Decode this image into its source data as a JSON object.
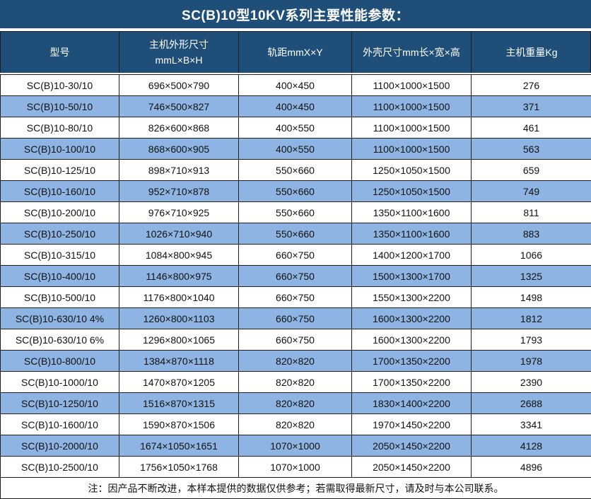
{
  "title": "SC(B)10型10KV系列主要性能参数：",
  "colors": {
    "header_bg": "#1f4e79",
    "header_text": "#ffffff",
    "row_bg": "#ffffff",
    "row_alt_bg": "#8db4e2",
    "border": "#1f1f1f",
    "text": "#111111"
  },
  "table": {
    "headers": [
      {
        "lines": [
          "型号"
        ]
      },
      {
        "lines": [
          "主机外形尺寸",
          "mmL×B×H"
        ]
      },
      {
        "lines": [
          "轨距mmX×Y"
        ]
      },
      {
        "lines": [
          "外壳尺寸mm长×宽×高"
        ]
      },
      {
        "lines": [
          "主机重量Kg"
        ]
      }
    ],
    "rows": [
      [
        "SC(B)10-30/10",
        "696×500×790",
        "400×450",
        "1100×1000×1500",
        "276"
      ],
      [
        "SC(B)10-50/10",
        "746×500×827",
        "400×450",
        "1100×1000×1500",
        "371"
      ],
      [
        "SC(B)10-80/10",
        "826×600×868",
        "400×550",
        "1100×1000×1500",
        "461"
      ],
      [
        "SC(B)10-100/10",
        "868×600×905",
        "400×550",
        "1100×1000×1500",
        "563"
      ],
      [
        "SC(B)10-125/10",
        "898×710×913",
        "550×660",
        "1250×1050×1500",
        "659"
      ],
      [
        "SC(B)10-160/10",
        "952×710×878",
        "550×660",
        "1250×1050×1500",
        "749"
      ],
      [
        "SC(B)10-200/10",
        "976×710×925",
        "550×660",
        "1350×1100×1600",
        "811"
      ],
      [
        "SC(B)10-250/10",
        "1026×710×940",
        "550×660",
        "1350×1100×1600",
        "883"
      ],
      [
        "SC(B)10-315/10",
        "1084×800×945",
        "660×750",
        "1400×1200×1700",
        "1066"
      ],
      [
        "SC(B)10-400/10",
        "1146×800×975",
        "660×750",
        "1500×1300×1700",
        "1325"
      ],
      [
        "SC(B)10-500/10",
        "1176×800×1040",
        "660×750",
        "1550×1300×2200",
        "1498"
      ],
      [
        "SC(B)10-630/10 4%",
        "1260×800×1103",
        "660×750",
        "1600×1300×2200",
        "1812"
      ],
      [
        "SC(B)10-630/10 6%",
        "1296×800×1065",
        "660×750",
        "1600×1300×2200",
        "1793"
      ],
      [
        "SC(B)10-800/10",
        "1384×870×1118",
        "820×820",
        "1700×1350×2200",
        "1978"
      ],
      [
        "SC(B)10-1000/10",
        "1470×870×1205",
        "820×820",
        "1700×1350×2200",
        "2390"
      ],
      [
        "SC(B)10-1250/10",
        "1516×870×1315",
        "820×820",
        "1830×1400×2200",
        "2688"
      ],
      [
        "SC(B)10-1600/10",
        "1590×870×1506",
        "820×820",
        "1970×1450×2200",
        "3341"
      ],
      [
        "SC(B)10-2000/10",
        "1674×1050×1651",
        "1070×1000",
        "2050×1450×2200",
        "4128"
      ],
      [
        "SC(B)10-2500/10",
        "1756×1050×1768",
        "1070×1000",
        "2050×1450×2200",
        "4896"
      ]
    ]
  },
  "note": "注：因产品不断改进，本样本提供的数据仅供参考；若需取得最新尺寸，请及时与本公司联系。"
}
